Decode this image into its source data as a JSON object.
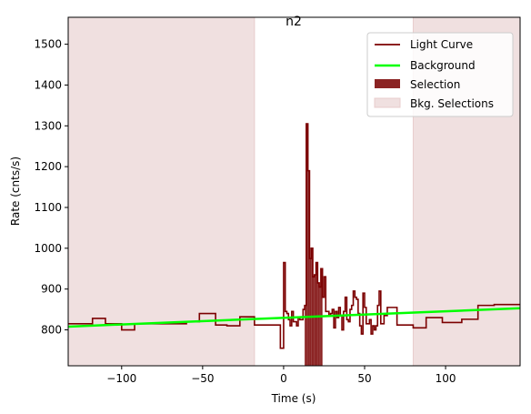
{
  "chart_data": {
    "type": "line",
    "title": "n2",
    "xlabel": "Time (s)",
    "ylabel": "Rate (cnts/s)",
    "xlim": [
      -133,
      146
    ],
    "ylim": [
      712,
      1566
    ],
    "xticks": [
      -100,
      -50,
      0,
      50,
      100
    ],
    "xtick_labels": [
      "−100",
      "−50",
      "0",
      "50",
      "100"
    ],
    "yticks": [
      800,
      900,
      1000,
      1100,
      1200,
      1300,
      1400,
      1500
    ],
    "ytick_labels": [
      "800",
      "900",
      "1000",
      "1100",
      "1200",
      "1300",
      "1400",
      "1500"
    ],
    "legend_position": "top-right",
    "colors": {
      "light_curve": "#7b0000",
      "background": "#00ff00",
      "selection": "#8b2323",
      "bkg_selection": "#f0e0e0",
      "bkg_selection_edge": "#e8cccc"
    },
    "series": [
      {
        "name": "Light Curve",
        "type": "step",
        "x": [
          -133,
          -118,
          -110,
          -100,
          -92,
          -60,
          -52,
          -42,
          -35,
          -27,
          -18,
          -10,
          -2,
          0,
          1,
          2,
          3,
          4,
          5,
          6,
          7,
          8,
          9,
          10,
          11,
          12,
          13,
          14,
          15,
          16,
          17,
          18,
          19,
          20,
          21,
          22,
          23,
          24,
          25,
          26,
          27,
          28,
          29,
          30,
          31,
          32,
          33,
          34,
          35,
          36,
          37,
          38,
          39,
          40,
          41,
          42,
          43,
          44,
          45,
          46,
          47,
          48,
          49,
          50,
          51,
          52,
          53,
          54,
          55,
          56,
          57,
          58,
          59,
          60,
          62,
          64,
          70,
          80,
          88,
          98,
          110,
          120,
          130,
          146
        ],
        "y": [
          815,
          828,
          815,
          800,
          815,
          820,
          840,
          812,
          810,
          832,
          812,
          812,
          755,
          965,
          845,
          840,
          825,
          810,
          845,
          820,
          820,
          810,
          830,
          825,
          825,
          850,
          860,
          1305,
          1190,
          975,
          1000,
          930,
          935,
          965,
          915,
          905,
          950,
          880,
          930,
          845,
          845,
          835,
          840,
          850,
          805,
          845,
          830,
          855,
          835,
          800,
          845,
          880,
          825,
          820,
          850,
          860,
          895,
          880,
          875,
          840,
          810,
          790,
          890,
          855,
          815,
          815,
          825,
          790,
          810,
          800,
          810,
          860,
          895,
          815,
          835,
          855,
          812,
          805,
          830,
          818,
          826,
          860,
          862,
          860
        ],
        "color": "#7b0000"
      },
      {
        "name": "Background",
        "type": "line",
        "x": [
          -133,
          146
        ],
        "y": [
          808,
          853
        ],
        "color": "#00ff00"
      }
    ],
    "selection": {
      "name": "Selection",
      "x_range": [
        13,
        24
      ]
    },
    "bkg_selections": {
      "name": "Bkg. Selections",
      "ranges": [
        [
          -133,
          -18
        ],
        [
          80,
          146
        ]
      ]
    }
  }
}
